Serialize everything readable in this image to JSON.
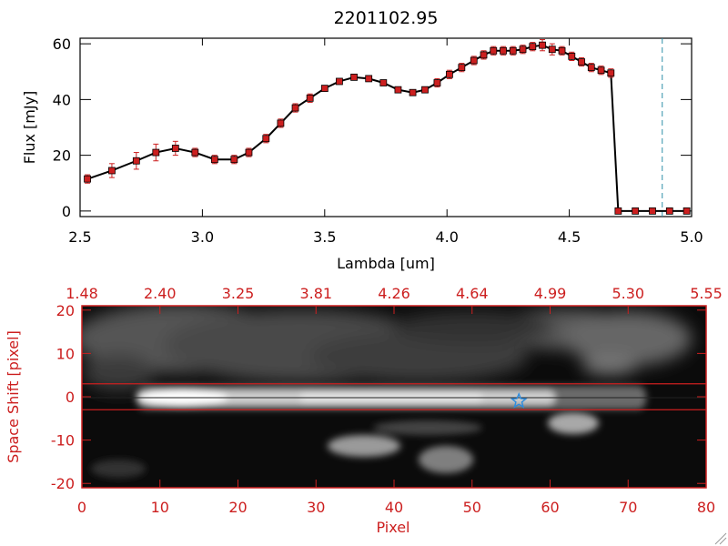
{
  "chart_data": [
    {
      "type": "line",
      "title": "2201102.95",
      "xlabel": "Lambda [um]",
      "ylabel": "Flux [mJy]",
      "xlim": [
        2.5,
        5.0
      ],
      "ylim": [
        -2,
        62
      ],
      "xticks": [
        "2.5",
        "3.0",
        "3.5",
        "4.0",
        "4.5",
        "5.0"
      ],
      "yticks": [
        "0",
        "20",
        "40",
        "60"
      ],
      "x": [
        2.53,
        2.63,
        2.73,
        2.81,
        2.89,
        2.97,
        3.05,
        3.13,
        3.19,
        3.26,
        3.32,
        3.38,
        3.44,
        3.5,
        3.56,
        3.62,
        3.68,
        3.74,
        3.8,
        3.86,
        3.91,
        3.96,
        4.01,
        4.06,
        4.11,
        4.15,
        4.19,
        4.23,
        4.27,
        4.31,
        4.35,
        4.39,
        4.43,
        4.47,
        4.51,
        4.55,
        4.59,
        4.63,
        4.67,
        4.7,
        4.77,
        4.84,
        4.91,
        4.98
      ],
      "values": [
        11.5,
        14.5,
        18.0,
        21.0,
        22.5,
        21.0,
        18.5,
        18.5,
        21.0,
        26.0,
        31.5,
        37.0,
        40.5,
        44.0,
        46.5,
        48.0,
        47.5,
        46.0,
        43.5,
        42.5,
        43.5,
        46.0,
        49.0,
        51.5,
        54.0,
        56.0,
        57.5,
        57.5,
        57.5,
        58.0,
        59.0,
        59.5,
        58.0,
        57.5,
        55.5,
        53.5,
        51.5,
        50.5,
        49.5,
        0,
        0,
        0,
        0,
        0
      ],
      "errors": [
        1.5,
        2.5,
        3.0,
        3.0,
        2.5,
        1.5,
        1.5,
        1.5,
        1.5,
        1.5,
        1.5,
        1.5,
        1.5,
        1.0,
        1.0,
        1.0,
        1.0,
        1.0,
        1.0,
        1.0,
        1.0,
        1.5,
        1.5,
        1.5,
        1.5,
        1.5,
        1.5,
        1.5,
        1.5,
        1.5,
        1.5,
        2.0,
        2.0,
        1.5,
        1.5,
        1.5,
        1.5,
        1.5,
        1.5,
        0.3,
        0.3,
        0.3,
        0.3,
        0.3
      ],
      "marker_color": "#cc1f1f",
      "line_color": "#000000",
      "vline_x": 4.88,
      "vline_color": "#2f8fa8"
    },
    {
      "type": "heatmap",
      "xlabel": "Pixel",
      "ylabel": "Space Shift [pixel]",
      "xlim": [
        0,
        80
      ],
      "ylim": [
        -21,
        21
      ],
      "xticks": [
        "0",
        "10",
        "20",
        "30",
        "40",
        "50",
        "60",
        "70",
        "80"
      ],
      "yticks": [
        "-20",
        "-10",
        "0",
        "10",
        "20"
      ],
      "top_ticks": [
        "1.48",
        "2.40",
        "3.25",
        "3.81",
        "4.26",
        "4.64",
        "4.99",
        "5.30",
        "5.55"
      ],
      "axis_color": "#cc1f1f",
      "aperture_y": [
        3,
        -3
      ],
      "star_x": 56,
      "star_y": -1,
      "star_color": "#2b8ce0"
    }
  ]
}
